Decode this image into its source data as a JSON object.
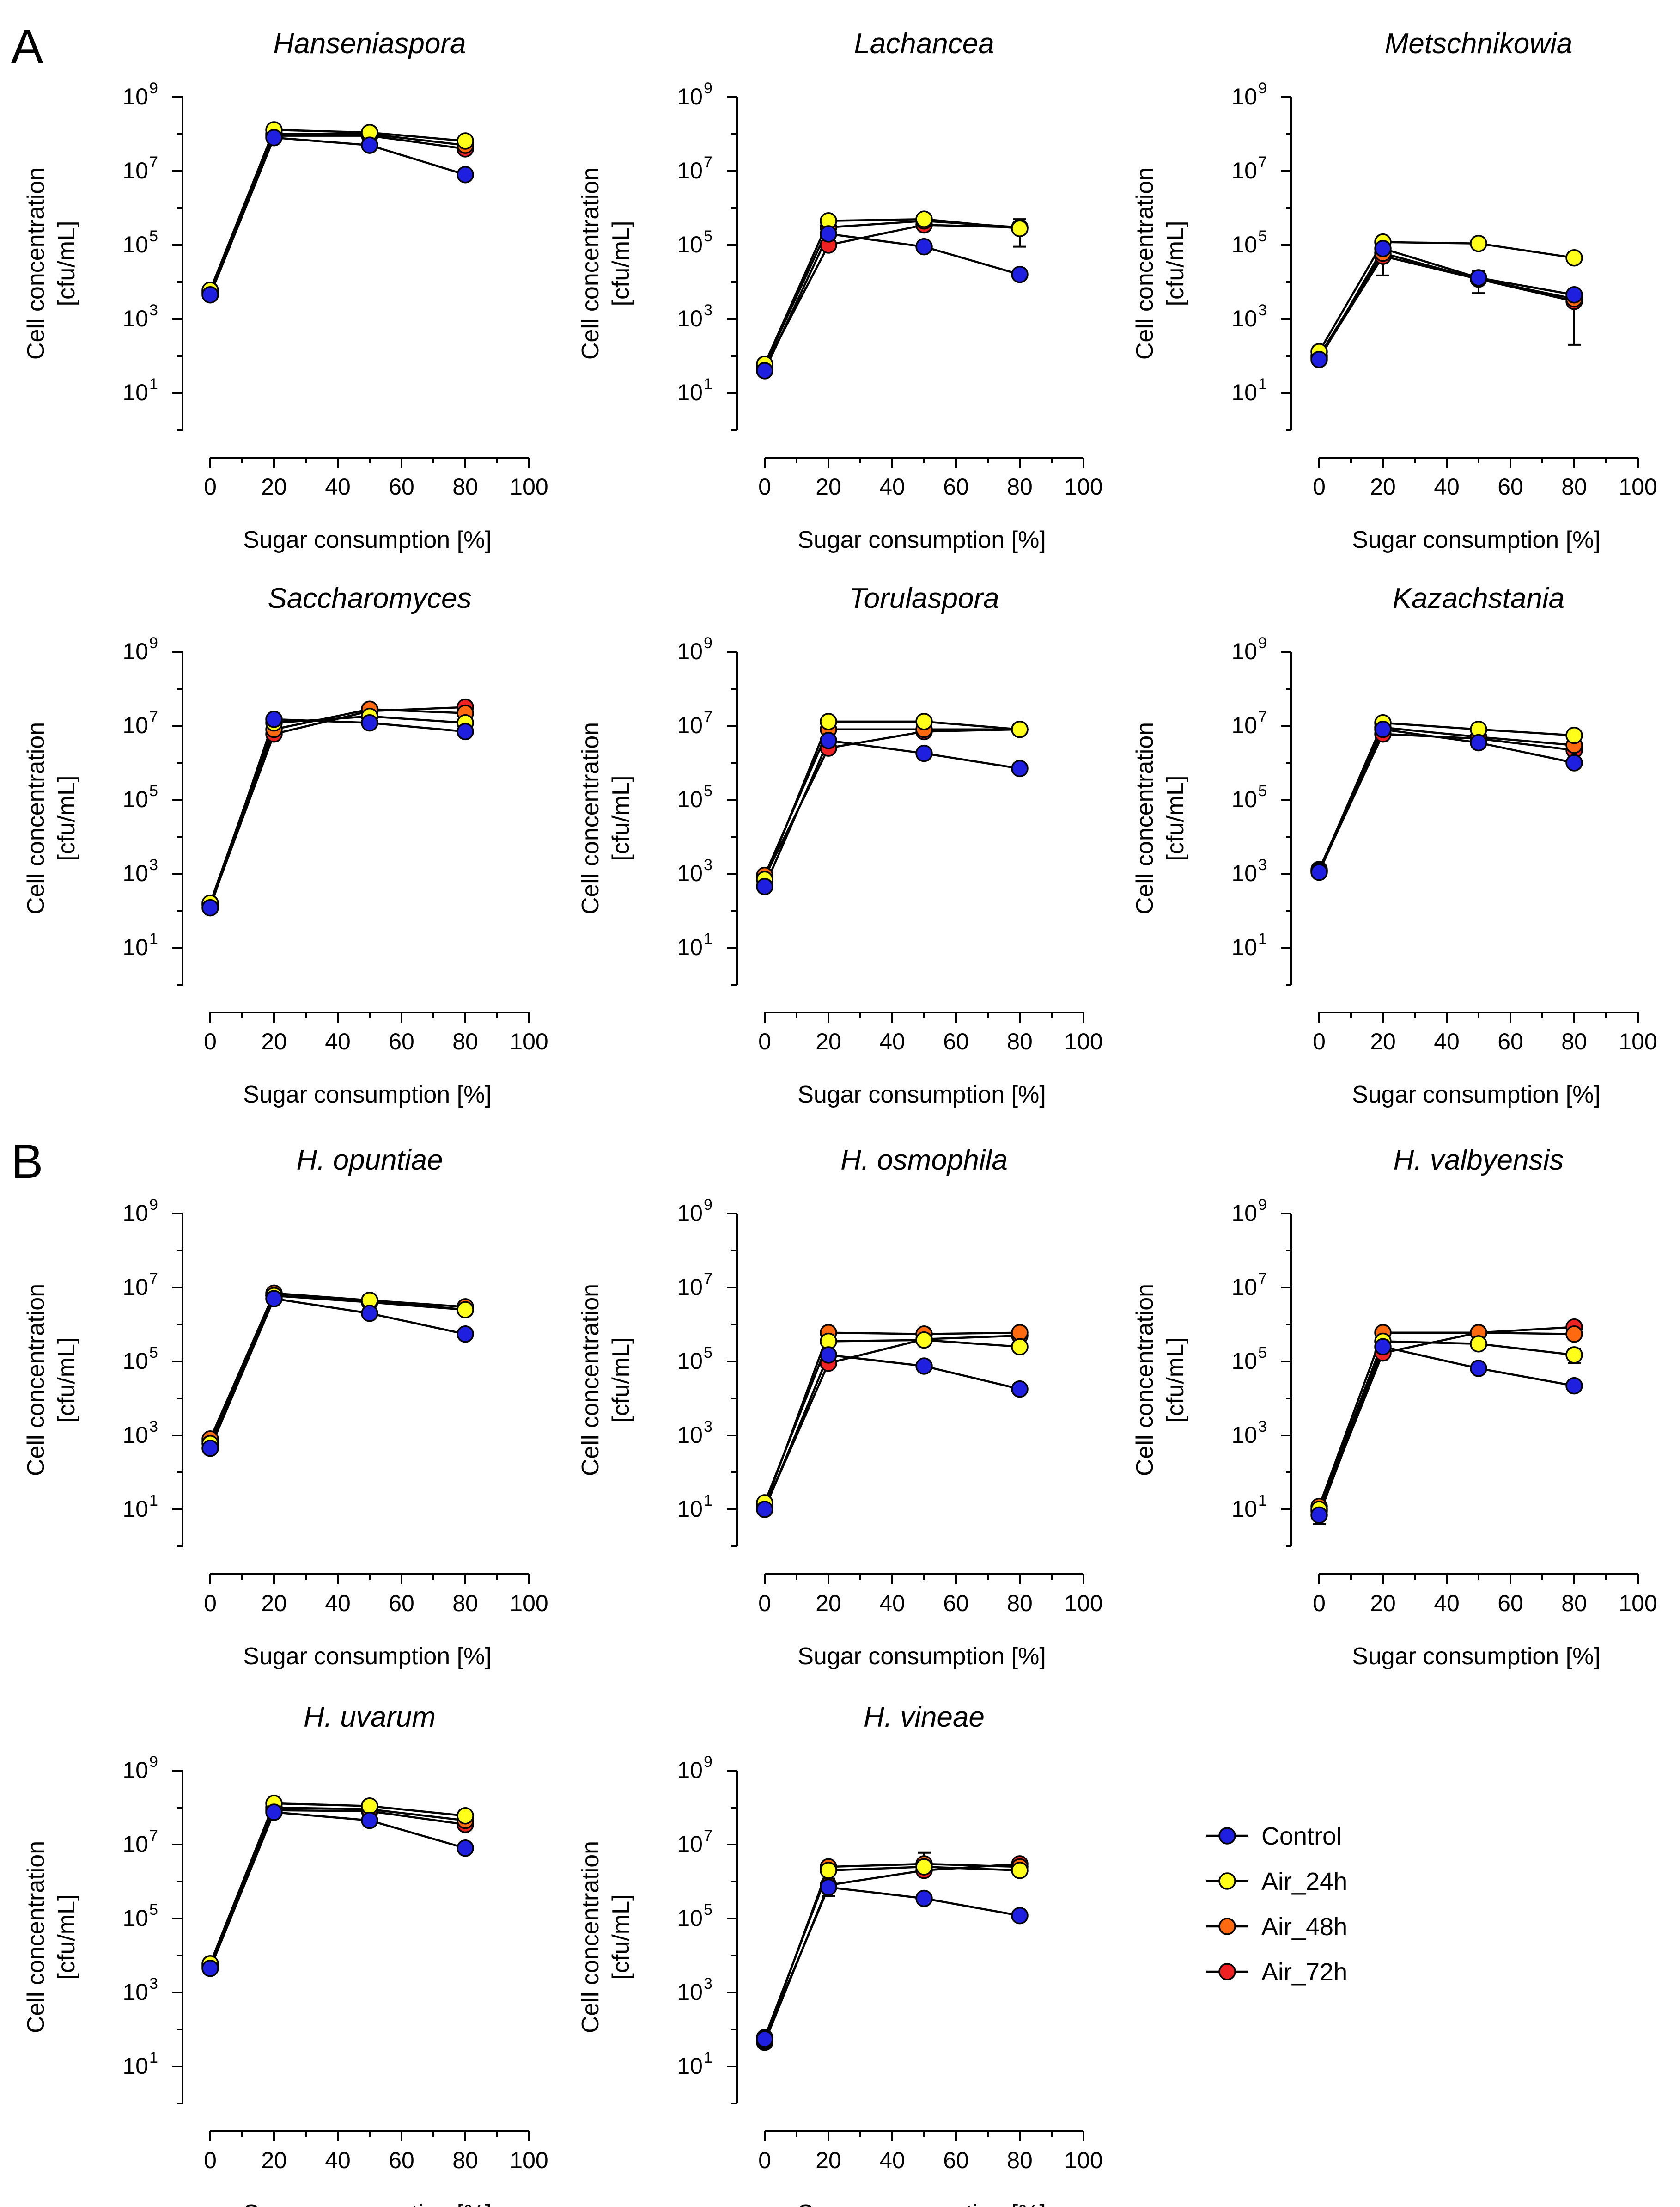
{
  "panel_letters": [
    "A",
    "B"
  ],
  "colors": {
    "Control": "#1f1fe0",
    "Air_24h": "#ffff1a",
    "Air_48h": "#ff6a10",
    "Air_72h": "#ee2222",
    "line": "#000000",
    "axis": "#000000"
  },
  "legend": {
    "entries": [
      "Control",
      "Air_24h",
      "Air_48h",
      "Air_72h"
    ]
  },
  "chart_data": [
    {
      "type": "line",
      "panel": "A",
      "title": "Hanseniaspora",
      "xlabel": "Sugar consumption [%]",
      "ylabel_line1": "Cell concentration",
      "ylabel_line2": "[cfu/mL]",
      "xlim": [
        0,
        100
      ],
      "xticks": [
        0,
        20,
        40,
        60,
        80,
        100
      ],
      "yscale": "log",
      "ylim_exp": [
        0,
        9
      ],
      "ytick_exps": [
        1,
        3,
        5,
        7,
        9
      ],
      "ytick_base": "10",
      "x": [
        0,
        20,
        50,
        80
      ],
      "series": [
        {
          "name": "Control",
          "values": [
            4500,
            80000000,
            50000000,
            8000000
          ]
        },
        {
          "name": "Air_24h",
          "values": [
            6000,
            130000000,
            110000000,
            65000000
          ]
        },
        {
          "name": "Air_48h",
          "values": [
            5500,
            100000000,
            100000000,
            50000000
          ]
        },
        {
          "name": "Air_72h",
          "values": [
            5000,
            90000000,
            90000000,
            40000000
          ]
        }
      ]
    },
    {
      "type": "line",
      "panel": "A",
      "title": "Lachancea",
      "xlabel": "Sugar consumption [%]",
      "ylabel_line1": "Cell concentration",
      "ylabel_line2": "[cfu/mL]",
      "xlim": [
        0,
        100
      ],
      "xticks": [
        0,
        20,
        40,
        60,
        80,
        100
      ],
      "yscale": "log",
      "ylim_exp": [
        0,
        9
      ],
      "ytick_exps": [
        1,
        3,
        5,
        7,
        9
      ],
      "ytick_base": "10",
      "x": [
        0,
        20,
        50,
        80
      ],
      "series": [
        {
          "name": "Control",
          "values": [
            40,
            200000,
            90000,
            16000
          ]
        },
        {
          "name": "Air_24h",
          "values": [
            60,
            450000,
            500000,
            280000
          ]
        },
        {
          "name": "Air_48h",
          "values": [
            55,
            300000,
            450000,
            300000
          ]
        },
        {
          "name": "Air_72h",
          "values": [
            50,
            100000,
            350000,
            300000
          ]
        }
      ],
      "error_bars": [
        {
          "series": "Air_24h",
          "x": 80,
          "low": 90000,
          "high": 500000
        }
      ]
    },
    {
      "type": "line",
      "panel": "A",
      "title": "Metschnikowia",
      "xlabel": "Sugar consumption [%]",
      "ylabel_line1": "Cell concentration",
      "ylabel_line2": "[cfu/mL]",
      "xlim": [
        0,
        100
      ],
      "xticks": [
        0,
        20,
        40,
        60,
        80,
        100
      ],
      "yscale": "log",
      "ylim_exp": [
        0,
        9
      ],
      "ytick_exps": [
        1,
        3,
        5,
        7,
        9
      ],
      "ytick_base": "10",
      "x": [
        0,
        20,
        50,
        80
      ],
      "series": [
        {
          "name": "Control",
          "values": [
            80,
            80000,
            13000,
            4500
          ]
        },
        {
          "name": "Air_24h",
          "values": [
            130,
            120000,
            110000,
            45000
          ]
        },
        {
          "name": "Air_48h",
          "values": [
            100,
            60000,
            12000,
            3500
          ]
        },
        {
          "name": "Air_72h",
          "values": [
            90,
            50000,
            12000,
            3000
          ]
        }
      ],
      "error_bars": [
        {
          "series": "Air_72h",
          "x": 20,
          "low": 15000,
          "high": 80000
        },
        {
          "series": "Control",
          "x": 50,
          "low": 5000,
          "high": 20000
        },
        {
          "series": "Air_72h",
          "x": 80,
          "low": 200,
          "high": 5000
        }
      ]
    },
    {
      "type": "line",
      "panel": "A",
      "title": "Saccharomyces",
      "xlabel": "Sugar consumption [%]",
      "ylabel_line1": "Cell concentration",
      "ylabel_line2": "[cfu/mL]",
      "xlim": [
        0,
        100
      ],
      "xticks": [
        0,
        20,
        40,
        60,
        80,
        100
      ],
      "yscale": "log",
      "ylim_exp": [
        0,
        9
      ],
      "ytick_exps": [
        1,
        3,
        5,
        7,
        9
      ],
      "ytick_base": "10",
      "x": [
        0,
        20,
        50,
        80
      ],
      "series": [
        {
          "name": "Control",
          "values": [
            120,
            15000000,
            12000000,
            7000000
          ]
        },
        {
          "name": "Air_24h",
          "values": [
            160,
            12000000,
            18000000,
            12000000
          ]
        },
        {
          "name": "Air_48h",
          "values": [
            150,
            8000000,
            28000000,
            22000000
          ]
        },
        {
          "name": "Air_72h",
          "values": [
            140,
            6000000,
            25000000,
            32000000
          ]
        }
      ]
    },
    {
      "type": "line",
      "panel": "A",
      "title": "Torulaspora",
      "xlabel": "Sugar consumption [%]",
      "ylabel_line1": "Cell concentration",
      "ylabel_line2": "[cfu/mL]",
      "xlim": [
        0,
        100
      ],
      "xticks": [
        0,
        20,
        40,
        60,
        80,
        100
      ],
      "yscale": "log",
      "ylim_exp": [
        0,
        9
      ],
      "ytick_exps": [
        1,
        3,
        5,
        7,
        9
      ],
      "ytick_base": "10",
      "x": [
        0,
        20,
        50,
        80
      ],
      "series": [
        {
          "name": "Control",
          "values": [
            450,
            4000000,
            1800000,
            700000
          ]
        },
        {
          "name": "Air_24h",
          "values": [
            700,
            13000000,
            13000000,
            8000000
          ]
        },
        {
          "name": "Air_48h",
          "values": [
            900,
            8000000,
            8000000,
            8000000
          ]
        },
        {
          "name": "Air_72h",
          "values": [
            800,
            2500000,
            7000000,
            8000000
          ]
        }
      ]
    },
    {
      "type": "line",
      "panel": "A",
      "title": "Kazachstania",
      "xlabel": "Sugar consumption [%]",
      "ylabel_line1": "Cell concentration",
      "ylabel_line2": "[cfu/mL]",
      "xlim": [
        0,
        100
      ],
      "xticks": [
        0,
        20,
        40,
        60,
        80,
        100
      ],
      "yscale": "log",
      "ylim_exp": [
        0,
        9
      ],
      "ytick_exps": [
        1,
        3,
        5,
        7,
        9
      ],
      "ytick_base": "10",
      "x": [
        0,
        20,
        50,
        80
      ],
      "series": [
        {
          "name": "Control",
          "values": [
            1100,
            8000000,
            3500000,
            1000000
          ]
        },
        {
          "name": "Air_24h",
          "values": [
            1200,
            12000000,
            8000000,
            5500000
          ]
        },
        {
          "name": "Air_48h",
          "values": [
            1300,
            9000000,
            5000000,
            3000000
          ]
        },
        {
          "name": "Air_72h",
          "values": [
            1200,
            6000000,
            4500000,
            2200000
          ]
        }
      ]
    },
    {
      "type": "line",
      "panel": "B",
      "title": "H. opuntiae",
      "xlabel": "Sugar consumption [%]",
      "ylabel_line1": "Cell concentration",
      "ylabel_line2": "[cfu/mL]",
      "xlim": [
        0,
        100
      ],
      "xticks": [
        0,
        20,
        40,
        60,
        80,
        100
      ],
      "yscale": "log",
      "ylim_exp": [
        0,
        9
      ],
      "ytick_exps": [
        1,
        3,
        5,
        7,
        9
      ],
      "ytick_base": "10",
      "x": [
        0,
        20,
        50,
        80
      ],
      "series": [
        {
          "name": "Control",
          "values": [
            450,
            5000000,
            2000000,
            550000
          ]
        },
        {
          "name": "Air_24h",
          "values": [
            600,
            6000000,
            4500000,
            2500000
          ]
        },
        {
          "name": "Air_48h",
          "values": [
            800,
            7000000,
            4500000,
            3000000
          ]
        },
        {
          "name": "Air_72h",
          "values": [
            700,
            6000000,
            4000000,
            2500000
          ]
        }
      ]
    },
    {
      "type": "line",
      "panel": "B",
      "title": "H. osmophila",
      "xlabel": "Sugar consumption [%]",
      "ylabel_line1": "Cell concentration",
      "ylabel_line2": "[cfu/mL]",
      "xlim": [
        0,
        100
      ],
      "xticks": [
        0,
        20,
        40,
        60,
        80,
        100
      ],
      "yscale": "log",
      "ylim_exp": [
        0,
        9
      ],
      "ytick_exps": [
        1,
        3,
        5,
        7,
        9
      ],
      "ytick_base": "10",
      "x": [
        0,
        20,
        50,
        80
      ],
      "series": [
        {
          "name": "Control",
          "values": [
            10,
            150000,
            75000,
            18000
          ]
        },
        {
          "name": "Air_24h",
          "values": [
            15,
            350000,
            380000,
            250000
          ]
        },
        {
          "name": "Air_48h",
          "values": [
            12,
            600000,
            550000,
            600000
          ]
        },
        {
          "name": "Air_72h",
          "values": [
            11,
            90000,
            400000,
            500000
          ]
        }
      ]
    },
    {
      "type": "line",
      "panel": "B",
      "title": "H. valbyensis",
      "xlabel": "Sugar consumption [%]",
      "ylabel_line1": "Cell concentration",
      "ylabel_line2": "[cfu/mL]",
      "xlim": [
        0,
        100
      ],
      "xticks": [
        0,
        20,
        40,
        60,
        80,
        100
      ],
      "yscale": "log",
      "ylim_exp": [
        0,
        9
      ],
      "ytick_exps": [
        1,
        3,
        5,
        7,
        9
      ],
      "ytick_base": "10",
      "x": [
        0,
        20,
        50,
        80
      ],
      "series": [
        {
          "name": "Control",
          "values": [
            7,
            250000,
            65000,
            22000
          ]
        },
        {
          "name": "Air_24h",
          "values": [
            10,
            350000,
            300000,
            150000
          ]
        },
        {
          "name": "Air_48h",
          "values": [
            12,
            600000,
            600000,
            550000
          ]
        },
        {
          "name": "Air_72h",
          "values": [
            9,
            170000,
            600000,
            850000
          ]
        }
      ],
      "error_bars": [
        {
          "series": "Control",
          "x": 0,
          "low": 4,
          "high": 12
        },
        {
          "series": "Air_24h",
          "x": 80,
          "low": 90000,
          "high": 220000
        }
      ]
    },
    {
      "type": "line",
      "panel": "B",
      "title": "H. uvarum",
      "xlabel": "Sugar consumption [%]",
      "ylabel_line1": "Cell concentration",
      "ylabel_line2": "[cfu/mL]",
      "xlim": [
        0,
        100
      ],
      "xticks": [
        0,
        20,
        40,
        60,
        80,
        100
      ],
      "yscale": "log",
      "ylim_exp": [
        0,
        9
      ],
      "ytick_exps": [
        1,
        3,
        5,
        7,
        9
      ],
      "ytick_base": "10",
      "x": [
        0,
        20,
        50,
        80
      ],
      "series": [
        {
          "name": "Control",
          "values": [
            4500,
            75000000,
            45000000,
            8000000
          ]
        },
        {
          "name": "Air_24h",
          "values": [
            6000,
            130000000,
            110000000,
            60000000
          ]
        },
        {
          "name": "Air_48h",
          "values": [
            5500,
            100000000,
            90000000,
            45000000
          ]
        },
        {
          "name": "Air_72h",
          "values": [
            5000,
            85000000,
            80000000,
            35000000
          ]
        }
      ]
    },
    {
      "type": "line",
      "panel": "B",
      "title": "H. vineae",
      "xlabel": "Sugar consumption [%]",
      "ylabel_line1": "Cell concentration",
      "ylabel_line2": "[cfu/mL]",
      "xlim": [
        0,
        100
      ],
      "xticks": [
        0,
        20,
        40,
        60,
        80,
        100
      ],
      "yscale": "log",
      "ylim_exp": [
        0,
        9
      ],
      "ytick_exps": [
        1,
        3,
        5,
        7,
        9
      ],
      "ytick_base": "10",
      "x": [
        0,
        20,
        50,
        80
      ],
      "series": [
        {
          "name": "Control",
          "values": [
            55,
            700000,
            350000,
            120000
          ]
        },
        {
          "name": "Air_24h",
          "values": [
            60,
            2000000,
            2500000,
            2000000
          ]
        },
        {
          "name": "Air_48h",
          "values": [
            50,
            2500000,
            3000000,
            2500000
          ]
        },
        {
          "name": "Air_72h",
          "values": [
            45,
            800000,
            2000000,
            3000000
          ]
        }
      ],
      "error_bars": [
        {
          "series": "Air_72h",
          "x": 20,
          "low": 400000,
          "high": 1200000
        },
        {
          "series": "Air_48h",
          "x": 50,
          "low": 1500000,
          "high": 6000000
        }
      ]
    }
  ]
}
